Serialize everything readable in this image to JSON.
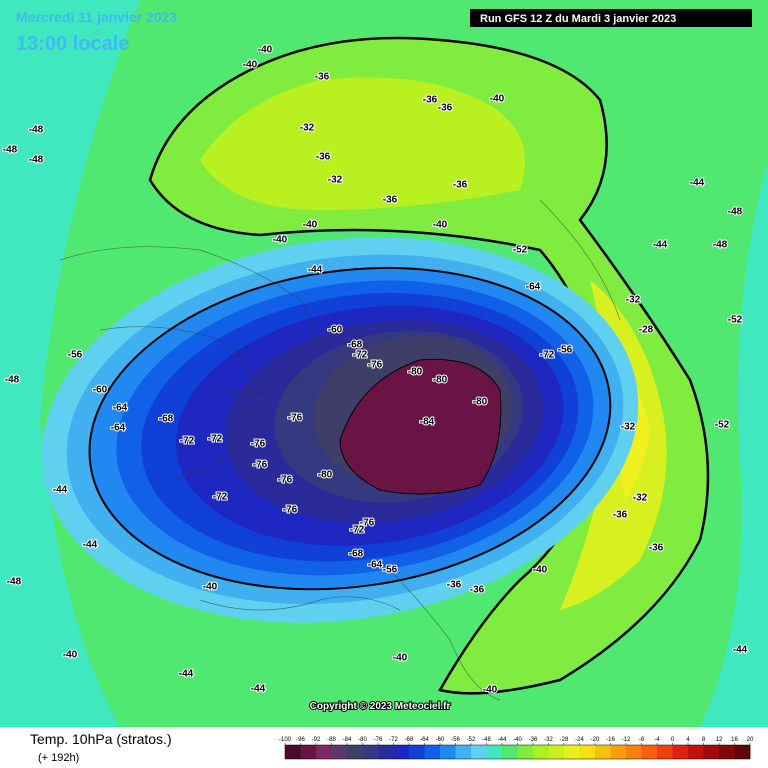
{
  "header": {
    "date": "Mercredi 11 janvier 2023",
    "time": "13:00 locale",
    "run": "Run GFS 12 Z du Mardi 3 janvier 2023"
  },
  "copyright": "Copyright © 2023 Meteociel.fr",
  "footer": {
    "title": "Temp. 10hPa (stratos.)",
    "lead": "(+ 192h)"
  },
  "scale": {
    "ticks": [
      -100,
      -96,
      -92,
      -88,
      -84,
      -80,
      -76,
      -72,
      -68,
      -64,
      -60,
      -56,
      -52,
      -48,
      -44,
      -40,
      -36,
      -32,
      -28,
      -24,
      -20,
      -16,
      -12,
      -8,
      -4,
      0,
      4,
      8,
      12,
      16,
      20
    ],
    "colors": [
      "#4a0a2e",
      "#6a1446",
      "#7a2a5e",
      "#5a3a6a",
      "#3e3e68",
      "#353a80",
      "#2a2a9a",
      "#1e28c0",
      "#1040d8",
      "#1060e8",
      "#2088f0",
      "#40b0f0",
      "#60d0f0",
      "#40e8c0",
      "#50e870",
      "#80ec40",
      "#a8f020",
      "#c8f020",
      "#e8f020",
      "#f8e010",
      "#f8c010",
      "#f8a010",
      "#f88010",
      "#f86010",
      "#f04010",
      "#e02010",
      "#c01010",
      "#a00a0a",
      "#800808",
      "#600505"
    ]
  },
  "contour_labels": [
    -40,
    -40,
    -36,
    -36,
    -36,
    -32,
    -32,
    -36,
    -36,
    -40,
    -40,
    -40,
    -36,
    -40,
    -44,
    -48,
    -48,
    -48,
    -48,
    -52,
    -56,
    -60,
    -64,
    -68,
    -72,
    -76,
    -80,
    -80,
    -84,
    -80,
    -76,
    -72,
    -76,
    -72,
    -68,
    -64,
    -56,
    -60,
    -64,
    -72,
    -76,
    -76,
    -72,
    -76,
    -80,
    -76,
    -72,
    -68,
    -64,
    -56,
    -36,
    -36,
    -40,
    -40,
    -44,
    -44,
    -32,
    -28,
    -32,
    -32,
    -36,
    -36,
    -44,
    -44,
    -48,
    -48,
    -52,
    -52,
    -40,
    -44,
    -40,
    -40,
    -44,
    -44,
    -48
  ]
}
